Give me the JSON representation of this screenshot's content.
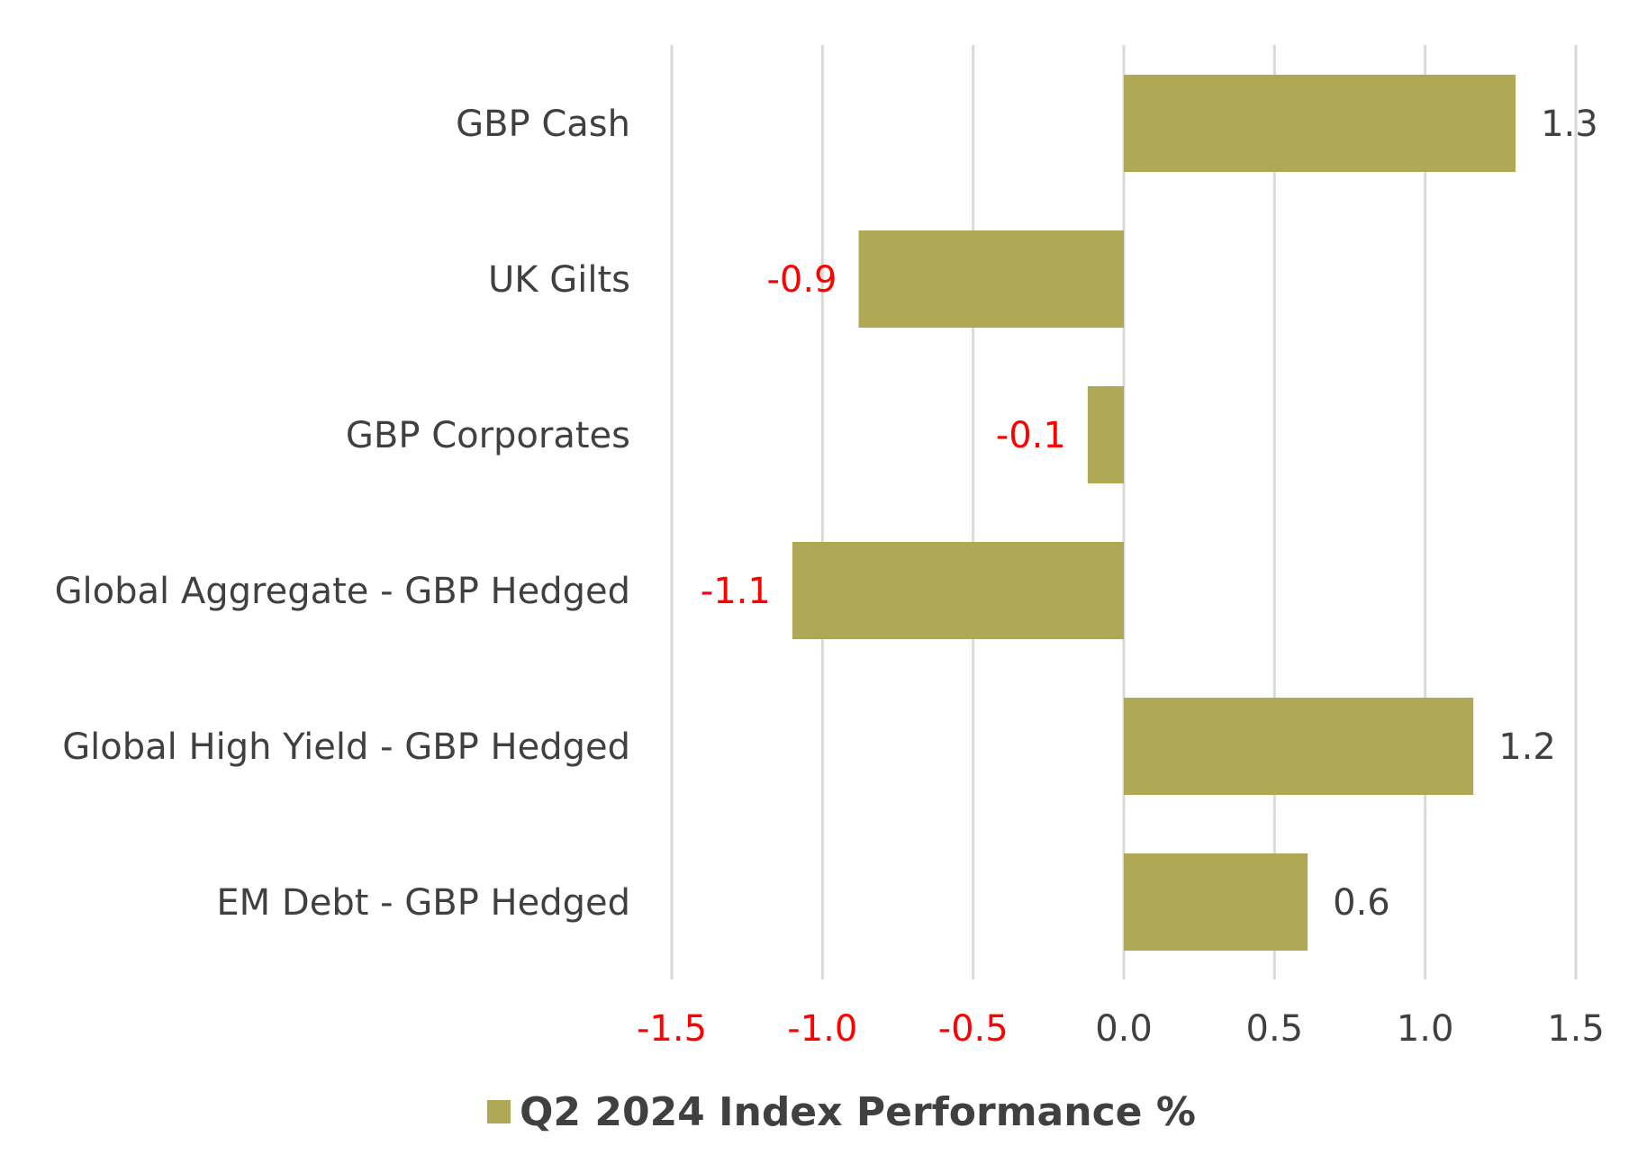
{
  "chart_data": {
    "type": "bar",
    "orientation": "horizontal",
    "categories": [
      "GBP Cash",
      "UK Gilts",
      "GBP Corporates",
      "Global Aggregate - GBP Hedged",
      "Global High Yield - GBP Hedged",
      "EM Debt - GBP Hedged"
    ],
    "series": [
      {
        "name": "Q2 2024 Index Performance %",
        "values": [
          1.3,
          -0.88,
          -0.12,
          -1.1,
          1.16,
          0.61
        ],
        "value_labels": [
          "1.3",
          "-0.9",
          "-0.1",
          "-1.1",
          "1.2",
          "0.6"
        ],
        "color": "#AFA955"
      }
    ],
    "xlim": [
      -1.5,
      1.5
    ],
    "xticks": [
      "-1.5",
      "-1.0",
      "-0.5",
      "0.0",
      "0.5",
      "1.0",
      "1.5"
    ],
    "xtick_values": [
      -1.5,
      -1.0,
      -0.5,
      0.0,
      0.5,
      1.0,
      1.5
    ],
    "grid": "vertical",
    "legend_position": "bottom",
    "negative_label_color": "#FF0000",
    "positive_label_color": "#404040",
    "text_color": "#404040",
    "gridline_color": "#D9D9D9"
  }
}
